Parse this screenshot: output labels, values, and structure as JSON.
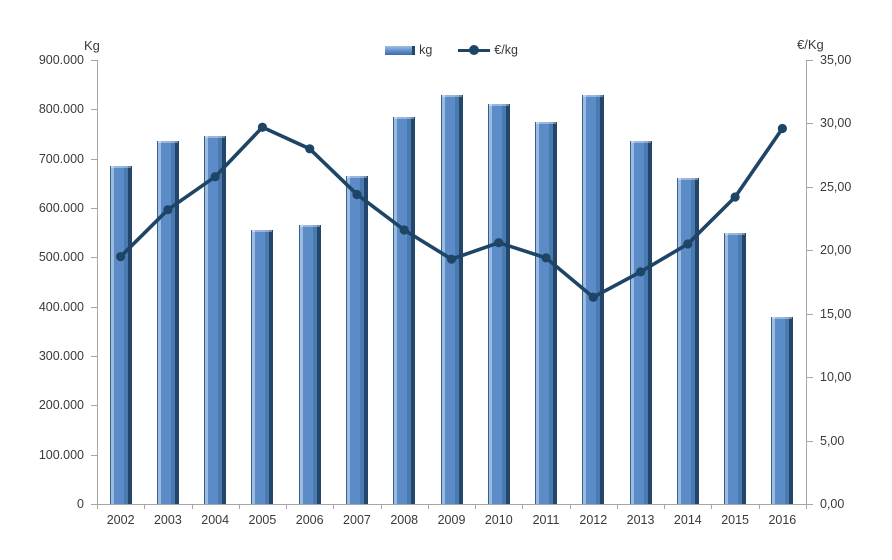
{
  "chart_data": {
    "type": "combo-bar-line",
    "title": "",
    "categories": [
      "2002",
      "2003",
      "2004",
      "2005",
      "2006",
      "2007",
      "2008",
      "2009",
      "2010",
      "2011",
      "2012",
      "2013",
      "2014",
      "2015",
      "2016"
    ],
    "series": [
      {
        "name": "kg",
        "type": "bar",
        "y_axis": "left",
        "color": "#5b8cc8",
        "values": [
          685000,
          735000,
          745000,
          555000,
          565000,
          665000,
          785000,
          830000,
          810000,
          775000,
          830000,
          735000,
          660000,
          550000,
          380000
        ]
      },
      {
        "name": "€/kg",
        "type": "line",
        "y_axis": "right",
        "color": "#1e4466",
        "values": [
          19.5,
          23.2,
          25.8,
          29.7,
          28.0,
          24.4,
          21.6,
          19.3,
          20.6,
          19.4,
          16.3,
          18.3,
          20.5,
          24.2,
          29.6
        ]
      }
    ],
    "left_axis": {
      "title": "Kg",
      "min": 0,
      "max": 900000,
      "step": 100000,
      "tick_labels": [
        "900.000",
        "800.000",
        "700.000",
        "600.000",
        "500.000",
        "400.000",
        "300.000",
        "200.000",
        "100.000",
        "0"
      ]
    },
    "right_axis": {
      "title": "€/Kg",
      "min": 0,
      "max": 35,
      "step": 5,
      "tick_labels": [
        "35,00",
        "30,00",
        "25,00",
        "20,00",
        "15,00",
        "10,00",
        "5,00",
        "0,00"
      ]
    },
    "grid": false,
    "legend_position": "top-center",
    "colors": {
      "bar_fill": "#5b8cc8",
      "bar_highlight": "#9bbbe0",
      "bar_shadow": "#24466b",
      "line": "#1e4466",
      "axis": "#a6a6a6",
      "text": "#3a3a3a"
    }
  }
}
